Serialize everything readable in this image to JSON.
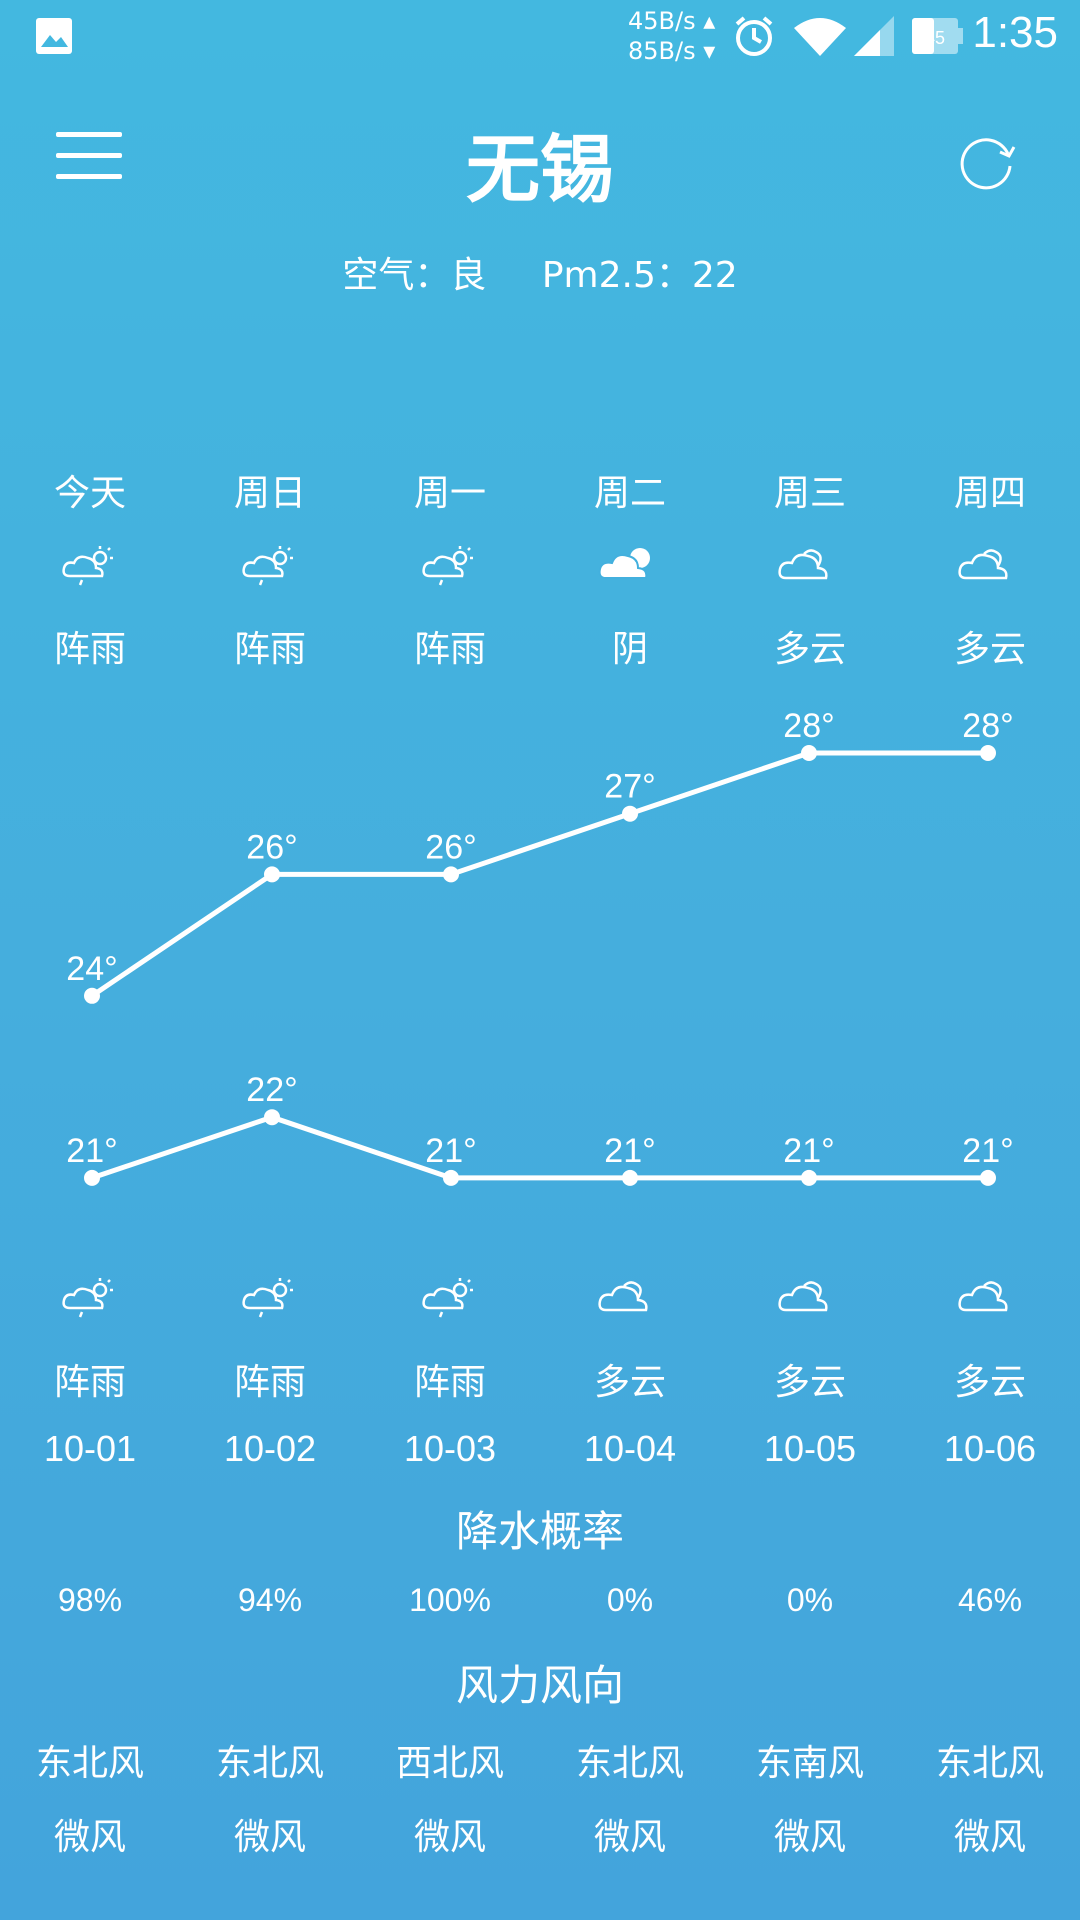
{
  "status_bar": {
    "net_up": "45B/s",
    "net_down": "85B/s",
    "battery": "45",
    "time": "1:35",
    "icons": [
      "image-icon",
      "alarm-icon",
      "wifi-icon",
      "signal-icon",
      "battery-icon"
    ]
  },
  "header": {
    "city": "无锡"
  },
  "air": {
    "quality": "空气：良",
    "pm25": "Pm2.5：22"
  },
  "days": [
    {
      "name": "今天",
      "day_icon": "shower-icon",
      "day_cond": "阵雨",
      "night_icon": "shower-icon",
      "night_cond": "阵雨",
      "date": "10-01",
      "precip": "98%",
      "wind_dir": "东北风",
      "wind_force": "微风"
    },
    {
      "name": "周日",
      "day_icon": "shower-icon",
      "day_cond": "阵雨",
      "night_icon": "shower-icon",
      "night_cond": "阵雨",
      "date": "10-02",
      "precip": "94%",
      "wind_dir": "东北风",
      "wind_force": "微风"
    },
    {
      "name": "周一",
      "day_icon": "shower-icon",
      "day_cond": "阵雨",
      "night_icon": "shower-icon",
      "night_cond": "阵雨",
      "date": "10-03",
      "precip": "100%",
      "wind_dir": "西北风",
      "wind_force": "微风"
    },
    {
      "name": "周二",
      "day_icon": "overcast-icon",
      "day_cond": "阴",
      "night_icon": "cloudy-icon",
      "night_cond": "多云",
      "date": "10-04",
      "precip": "0%",
      "wind_dir": "东北风",
      "wind_force": "微风"
    },
    {
      "name": "周三",
      "day_icon": "cloudy-icon",
      "day_cond": "多云",
      "night_icon": "cloudy-icon",
      "night_cond": "多云",
      "date": "10-05",
      "precip": "0%",
      "wind_dir": "东南风",
      "wind_force": "微风"
    },
    {
      "name": "周四",
      "day_icon": "cloudy-icon",
      "day_cond": "多云",
      "night_icon": "cloudy-icon",
      "night_cond": "多云",
      "date": "10-06",
      "precip": "46%",
      "wind_dir": "东北风",
      "wind_force": "微风"
    }
  ],
  "chart_data": {
    "type": "line",
    "categories": [
      "今天",
      "周日",
      "周一",
      "周二",
      "周三",
      "周四"
    ],
    "series": [
      {
        "values": [
          24,
          26,
          26,
          27,
          28,
          28
        ]
      },
      {
        "values": [
          21,
          22,
          21,
          21,
          21,
          21
        ]
      }
    ],
    "point_labels": [
      [
        "24°",
        "26°",
        "26°",
        "27°",
        "28°",
        "28°"
      ],
      [
        "21°",
        "22°",
        "21°",
        "21°",
        "21°",
        "21°"
      ]
    ]
  },
  "sections": {
    "precip_title": "降水概率",
    "wind_title": "风力风向"
  }
}
